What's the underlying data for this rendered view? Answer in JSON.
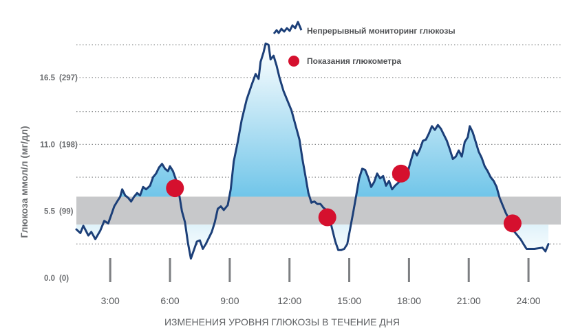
{
  "chart_data": {
    "type": "line",
    "title": "",
    "xlabel": "ИЗМЕНЕНИЯ УРОВНЯ ГЛЮКОЗЫ В ТЕЧЕНИЕ ДНЯ",
    "ylabel": "Глюкоза ммол/л (мг/дл)",
    "xlim": [
      1.3,
      25
    ],
    "ylim": [
      0,
      19.5
    ],
    "x_ticks": [
      {
        "v": 3,
        "label": "3:00"
      },
      {
        "v": 6,
        "label": "6:00"
      },
      {
        "v": 9,
        "label": "9:00"
      },
      {
        "v": 12,
        "label": "12:00"
      },
      {
        "v": 15,
        "label": "15:00"
      },
      {
        "v": 18,
        "label": "18:00"
      },
      {
        "v": 21,
        "label": "21:00"
      },
      {
        "v": 24,
        "label": "24:00"
      }
    ],
    "y_ticks": [
      {
        "v": 0.0,
        "mmol": "0.0",
        "mgdl": "(0)"
      },
      {
        "v": 5.5,
        "mmol": "5.5",
        "mgdl": "(99)"
      },
      {
        "v": 11.0,
        "mmol": "11.0",
        "mgdl": "(198)"
      },
      {
        "v": 16.5,
        "mmol": "16.5",
        "mgdl": "(297)"
      }
    ],
    "target_range": [
      4.4,
      6.7
    ],
    "grid": {
      "dotted_y_levels": [
        2.8,
        5.5,
        8.3,
        11.0,
        13.7,
        16.5,
        19.2
      ]
    },
    "legend": {
      "placement": "top-right",
      "cgm_label": "Непрерывный мониторинг глюкозы",
      "meter_label": "Показания глюкометра"
    },
    "colors": {
      "line": "#1c3f78",
      "meter": "#d5102e",
      "band": "#c7c8ca",
      "fill_light": "#ffffff",
      "fill_dark": "#37aee0",
      "axis_text": "#6b6d70",
      "grid": "#8a8c8e"
    },
    "series": [
      {
        "name": "Непрерывный мониторинг глюкозы",
        "points": [
          [
            1.3,
            4.0
          ],
          [
            1.5,
            3.7
          ],
          [
            1.65,
            4.3
          ],
          [
            1.9,
            3.5
          ],
          [
            2.05,
            3.8
          ],
          [
            2.25,
            3.2
          ],
          [
            2.5,
            3.9
          ],
          [
            2.7,
            4.7
          ],
          [
            2.9,
            4.5
          ],
          [
            3.05,
            5.2
          ],
          [
            3.2,
            5.9
          ],
          [
            3.35,
            6.3
          ],
          [
            3.5,
            6.7
          ],
          [
            3.6,
            7.3
          ],
          [
            3.75,
            6.8
          ],
          [
            3.9,
            6.6
          ],
          [
            4.05,
            6.3
          ],
          [
            4.2,
            6.7
          ],
          [
            4.35,
            7.0
          ],
          [
            4.5,
            6.8
          ],
          [
            4.65,
            7.5
          ],
          [
            4.8,
            7.3
          ],
          [
            5.0,
            7.6
          ],
          [
            5.15,
            8.3
          ],
          [
            5.3,
            8.6
          ],
          [
            5.45,
            9.1
          ],
          [
            5.6,
            9.4
          ],
          [
            5.75,
            9.0
          ],
          [
            5.9,
            8.8
          ],
          [
            6.0,
            9.2
          ],
          [
            6.15,
            8.8
          ],
          [
            6.3,
            8.1
          ],
          [
            6.45,
            7.0
          ],
          [
            6.6,
            5.5
          ],
          [
            6.75,
            4.6
          ],
          [
            6.9,
            2.9
          ],
          [
            7.05,
            1.6
          ],
          [
            7.2,
            2.3
          ],
          [
            7.35,
            3.0
          ],
          [
            7.5,
            3.1
          ],
          [
            7.65,
            2.4
          ],
          [
            7.8,
            2.8
          ],
          [
            7.95,
            3.3
          ],
          [
            8.1,
            3.8
          ],
          [
            8.25,
            4.6
          ],
          [
            8.4,
            5.7
          ],
          [
            8.55,
            5.9
          ],
          [
            8.7,
            5.6
          ],
          [
            8.9,
            6.0
          ],
          [
            9.05,
            7.3
          ],
          [
            9.2,
            9.6
          ],
          [
            9.4,
            11.2
          ],
          [
            9.6,
            13.0
          ],
          [
            9.85,
            14.7
          ],
          [
            10.1,
            15.9
          ],
          [
            10.3,
            16.8
          ],
          [
            10.45,
            16.4
          ],
          [
            10.55,
            17.8
          ],
          [
            10.7,
            18.6
          ],
          [
            10.8,
            19.3
          ],
          [
            10.95,
            19.2
          ],
          [
            11.05,
            18.0
          ],
          [
            11.2,
            18.3
          ],
          [
            11.35,
            17.5
          ],
          [
            11.5,
            16.5
          ],
          [
            11.7,
            15.4
          ],
          [
            11.9,
            14.6
          ],
          [
            12.1,
            13.8
          ],
          [
            12.3,
            12.6
          ],
          [
            12.5,
            11.4
          ],
          [
            12.65,
            9.8
          ],
          [
            12.8,
            8.4
          ],
          [
            12.95,
            7.0
          ],
          [
            13.1,
            6.2
          ],
          [
            13.25,
            6.3
          ],
          [
            13.4,
            6.1
          ],
          [
            13.55,
            6.1
          ],
          [
            13.7,
            5.8
          ],
          [
            13.85,
            5.6
          ],
          [
            14.0,
            5.0
          ],
          [
            14.15,
            4.0
          ],
          [
            14.3,
            3.0
          ],
          [
            14.45,
            2.3
          ],
          [
            14.6,
            2.3
          ],
          [
            14.75,
            2.4
          ],
          [
            14.9,
            2.8
          ],
          [
            15.05,
            4.1
          ],
          [
            15.2,
            5.4
          ],
          [
            15.35,
            6.8
          ],
          [
            15.5,
            8.2
          ],
          [
            15.65,
            9.0
          ],
          [
            15.8,
            8.9
          ],
          [
            15.95,
            8.3
          ],
          [
            16.1,
            7.5
          ],
          [
            16.25,
            7.9
          ],
          [
            16.4,
            8.6
          ],
          [
            16.55,
            8.2
          ],
          [
            16.7,
            8.4
          ],
          [
            16.85,
            7.6
          ],
          [
            17.0,
            8.0
          ],
          [
            17.15,
            7.3
          ],
          [
            17.3,
            7.6
          ],
          [
            17.5,
            7.9
          ],
          [
            17.65,
            8.1
          ],
          [
            17.8,
            8.3
          ],
          [
            17.95,
            8.8
          ],
          [
            18.1,
            9.7
          ],
          [
            18.25,
            10.5
          ],
          [
            18.4,
            10.1
          ],
          [
            18.55,
            10.6
          ],
          [
            18.7,
            11.3
          ],
          [
            18.85,
            11.4
          ],
          [
            19.0,
            11.9
          ],
          [
            19.15,
            12.5
          ],
          [
            19.3,
            12.2
          ],
          [
            19.45,
            12.6
          ],
          [
            19.6,
            12.3
          ],
          [
            19.75,
            11.8
          ],
          [
            19.9,
            11.3
          ],
          [
            20.05,
            10.6
          ],
          [
            20.2,
            9.8
          ],
          [
            20.35,
            10.0
          ],
          [
            20.5,
            10.5
          ],
          [
            20.65,
            10.0
          ],
          [
            20.8,
            11.2
          ],
          [
            20.95,
            11.6
          ],
          [
            21.05,
            12.5
          ],
          [
            21.2,
            12.0
          ],
          [
            21.35,
            11.2
          ],
          [
            21.5,
            10.4
          ],
          [
            21.65,
            9.9
          ],
          [
            21.8,
            9.2
          ],
          [
            21.95,
            8.8
          ],
          [
            22.1,
            8.3
          ],
          [
            22.25,
            8.0
          ],
          [
            22.4,
            7.5
          ],
          [
            22.55,
            6.6
          ],
          [
            22.7,
            6.0
          ],
          [
            22.85,
            5.4
          ],
          [
            23.0,
            4.9
          ],
          [
            23.15,
            4.3
          ],
          [
            23.3,
            3.8
          ],
          [
            23.45,
            3.5
          ],
          [
            23.6,
            3.2
          ],
          [
            23.75,
            2.8
          ],
          [
            23.9,
            2.4
          ],
          [
            24.3,
            2.4
          ],
          [
            24.7,
            2.5
          ],
          [
            24.85,
            2.2
          ],
          [
            25.0,
            2.8
          ]
        ]
      }
    ],
    "meter_readings": [
      {
        "x": 6.25,
        "y": 7.4
      },
      {
        "x": 13.9,
        "y": 5.0
      },
      {
        "x": 17.6,
        "y": 8.6
      },
      {
        "x": 23.2,
        "y": 4.5
      }
    ]
  }
}
